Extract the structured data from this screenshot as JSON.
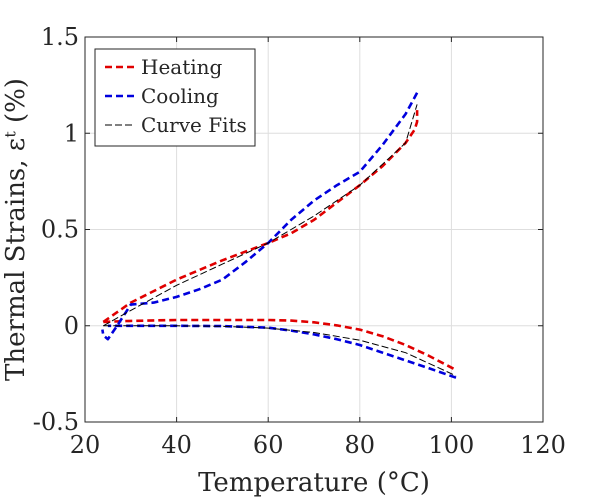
{
  "chart_data": {
    "type": "line",
    "xlabel": "Temperature (°C)",
    "ylabel": "Thermal Strains, εᵗ (%)",
    "xlim": [
      20,
      120
    ],
    "ylim": [
      -0.5,
      1.5
    ],
    "xticks": [
      "20",
      "40",
      "60",
      "80",
      "100",
      "120"
    ],
    "yticks": [
      "-0.5",
      "0",
      "0.5",
      "1",
      "1.5"
    ],
    "grid": true,
    "legend_position": "top-left",
    "series": [
      {
        "name": "Heating",
        "color": "#e00000",
        "style": "dashed",
        "segments": [
          {
            "x": [
              24,
              30,
              40,
              50,
              60,
              65,
              70,
              75,
              80,
              85,
              90,
              92,
              92.5,
              92.5
            ],
            "y": [
              0.02,
              0.12,
              0.24,
              0.34,
              0.43,
              0.48,
              0.55,
              0.64,
              0.73,
              0.83,
              0.95,
              1.02,
              1.06,
              1.12
            ]
          },
          {
            "x": [
              24,
              30,
              40,
              50,
              60,
              65,
              70,
              75,
              80,
              85,
              90,
              95,
              101
            ],
            "y": [
              0.02,
              0.025,
              0.03,
              0.03,
              0.03,
              0.027,
              0.018,
              0.002,
              -0.02,
              -0.055,
              -0.1,
              -0.155,
              -0.23
            ]
          }
        ]
      },
      {
        "name": "Cooling",
        "color": "#0000dd",
        "style": "dashed",
        "segments": [
          {
            "x": [
              92.5,
              90,
              85,
              80,
              75,
              70,
              65,
              60,
              55,
              50,
              45,
              40,
              35,
              30,
              27,
              25,
              24,
              23.8
            ],
            "y": [
              1.21,
              1.1,
              0.94,
              0.8,
              0.73,
              0.65,
              0.55,
              0.43,
              0.33,
              0.24,
              0.19,
              0.15,
              0.12,
              0.11,
              0.0,
              -0.07,
              -0.05,
              -0.02
            ]
          },
          {
            "x": [
              101,
              95,
              90,
              85,
              80,
              75,
              70,
              65,
              60,
              50,
              40,
              30,
              25
            ],
            "y": [
              -0.27,
              -0.22,
              -0.18,
              -0.14,
              -0.1,
              -0.07,
              -0.045,
              -0.025,
              -0.01,
              -0.002,
              0.0,
              0.0,
              0.0
            ]
          }
        ]
      },
      {
        "name": "Curve Fits",
        "color": "#000000",
        "style": "thin-dashed",
        "segments": [
          {
            "x": [
              24,
              30,
              40,
              50,
              60,
              70,
              80,
              90,
              92.5
            ],
            "y": [
              0.0,
              0.08,
              0.21,
              0.32,
              0.43,
              0.57,
              0.73,
              0.95,
              1.15
            ]
          },
          {
            "x": [
              24,
              30,
              40,
              50,
              60,
              70,
              80,
              90,
              101
            ],
            "y": [
              0.0,
              0.0,
              0.0,
              -0.003,
              -0.012,
              -0.035,
              -0.075,
              -0.14,
              -0.26
            ]
          }
        ]
      }
    ]
  }
}
